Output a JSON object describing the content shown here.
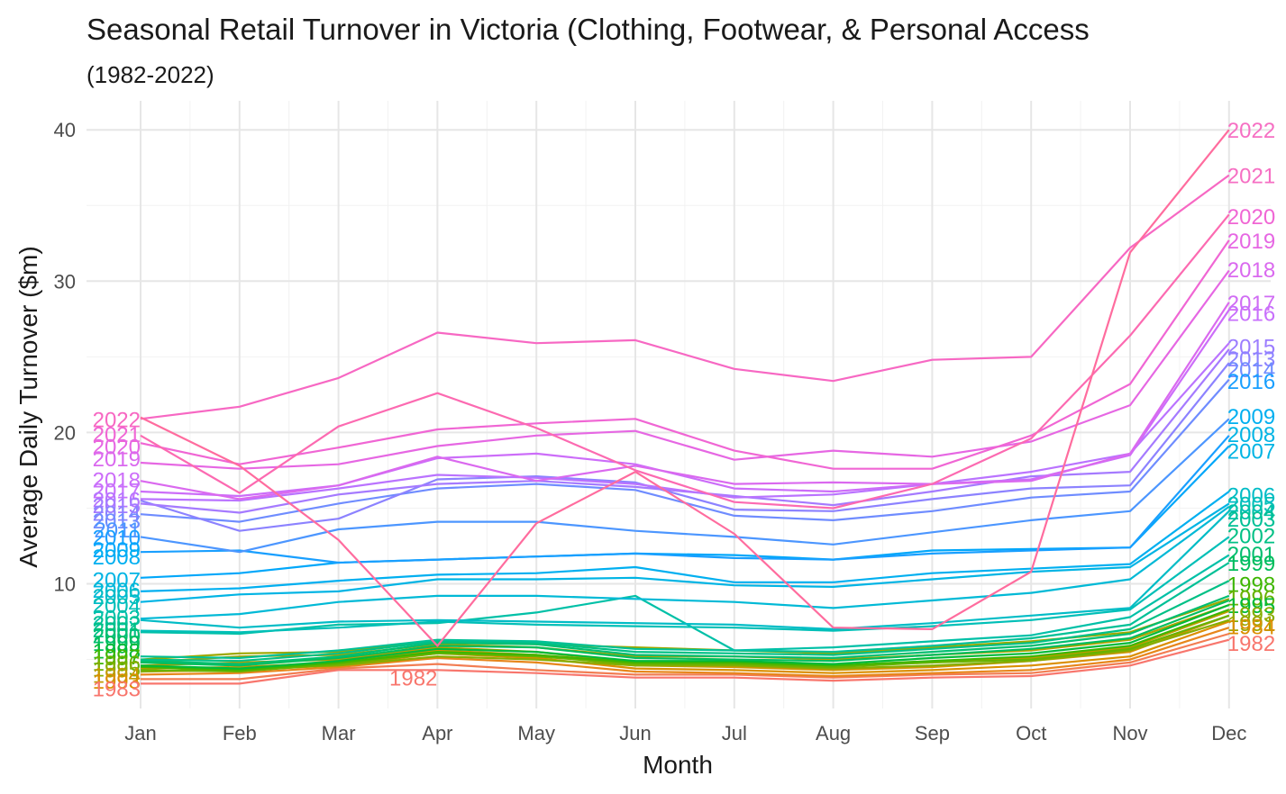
{
  "chart_data": {
    "type": "line",
    "title": "Seasonal Retail Turnover in Victoria (Clothing, Footwear, & Personal Access",
    "subtitle": "(1982-2022)",
    "xlabel": "Month",
    "ylabel": "Average Daily Turnover ($m)",
    "categories": [
      "Jan",
      "Feb",
      "Mar",
      "Apr",
      "May",
      "Jun",
      "Jul",
      "Aug",
      "Sep",
      "Oct",
      "Nov",
      "Dec"
    ],
    "ylim": [
      1.5,
      42
    ],
    "yticks": [
      10,
      20,
      30,
      40
    ],
    "grid": true,
    "legend": "none (year labels at line ends)",
    "series": [
      {
        "name": "1982",
        "color": "#F8766D",
        "values": [
          3.4,
          3.4,
          4.3,
          4.3,
          4.1,
          3.8,
          3.8,
          3.6,
          3.8,
          3.9,
          4.6,
          6.3
        ]
      },
      {
        "name": "1983",
        "color": "#F27D52",
        "values": [
          3.7,
          3.7,
          4.4,
          4.7,
          4.3,
          4.0,
          4.0,
          3.8,
          4.0,
          4.1,
          4.8,
          6.7
        ]
      },
      {
        "name": "1984",
        "color": "#E7861B",
        "values": [
          4.0,
          4.1,
          4.5,
          5.1,
          4.8,
          4.2,
          4.1,
          3.9,
          4.1,
          4.3,
          5.0,
          7.1
        ]
      },
      {
        "name": "1985",
        "color": "#DB8E00",
        "values": [
          4.2,
          4.3,
          4.6,
          5.4,
          5.1,
          4.4,
          4.3,
          4.1,
          4.3,
          4.6,
          5.2,
          7.5
        ]
      },
      {
        "name": "1986",
        "color": "#CF9400",
        "values": [
          4.4,
          4.5,
          4.8,
          5.6,
          5.3,
          4.6,
          4.5,
          4.3,
          4.5,
          4.9,
          5.5,
          7.9
        ]
      },
      {
        "name": "1987",
        "color": "#C09B00",
        "values": [
          4.6,
          4.8,
          5.0,
          5.8,
          5.5,
          4.8,
          4.8,
          4.6,
          4.8,
          5.1,
          5.8,
          8.2
        ]
      },
      {
        "name": "1988",
        "color": "#AFA100",
        "values": [
          4.8,
          5.2,
          5.3,
          6.0,
          5.8,
          5.2,
          5.2,
          5.0,
          5.3,
          5.6,
          6.3,
          8.6
        ]
      },
      {
        "name": "1989",
        "color": "#9DA700",
        "values": [
          5.0,
          5.4,
          5.5,
          6.2,
          6.0,
          5.8,
          5.6,
          5.4,
          5.8,
          6.2,
          6.8,
          9.0
        ]
      },
      {
        "name": "1990",
        "color": "#85AD00",
        "values": [
          4.2,
          4.4,
          4.6,
          5.2,
          5.0,
          4.6,
          4.6,
          4.4,
          4.6,
          4.9,
          5.6,
          7.6
        ]
      },
      {
        "name": "1991",
        "color": "#68B200",
        "values": [
          4.3,
          4.2,
          4.7,
          5.4,
          5.2,
          4.7,
          4.7,
          4.5,
          4.8,
          5.0,
          5.7,
          7.9
        ]
      },
      {
        "name": "1992",
        "color": "#3DB600",
        "values": [
          4.5,
          4.3,
          4.8,
          5.5,
          5.3,
          4.8,
          4.8,
          4.6,
          4.9,
          5.2,
          5.9,
          8.3
        ]
      },
      {
        "name": "1993",
        "color": "#00BA38",
        "values": [
          4.6,
          4.4,
          4.9,
          5.7,
          5.5,
          4.9,
          4.9,
          4.7,
          5.1,
          5.4,
          6.1,
          8.6
        ]
      },
      {
        "name": "1994",
        "color": "#00BD5C",
        "values": [
          4.8,
          4.6,
          5.1,
          5.9,
          5.8,
          5.1,
          5.0,
          4.9,
          5.3,
          5.7,
          6.4,
          8.9
        ]
      },
      {
        "name": "1995",
        "color": "#00BE70",
        "values": [
          4.9,
          4.7,
          5.2,
          6.1,
          6.0,
          5.3,
          5.2,
          5.1,
          5.5,
          5.9,
          6.7,
          9.2
        ]
      },
      {
        "name": "1996",
        "color": "#00C085",
        "values": [
          5.0,
          4.9,
          5.4,
          6.2,
          6.1,
          5.5,
          5.4,
          5.3,
          5.7,
          6.1,
          7.0,
          10.2
        ]
      },
      {
        "name": "1997",
        "color": "#00C096",
        "values": [
          5.2,
          5.1,
          5.6,
          6.3,
          6.2,
          5.7,
          5.6,
          5.5,
          5.9,
          6.4,
          7.3,
          11.4
        ]
      },
      {
        "name": "1998",
        "color": "#00C0A7",
        "values": [
          6.8,
          6.7,
          7.3,
          7.4,
          8.1,
          9.2,
          5.6,
          5.8,
          6.2,
          6.6,
          7.8,
          11.9
        ]
      },
      {
        "name": "1999",
        "color": "#00BFB7",
        "values": [
          6.9,
          6.8,
          7.1,
          7.5,
          7.3,
          7.2,
          7.1,
          6.9,
          7.2,
          7.6,
          8.3,
          13.1
        ]
      },
      {
        "name": "2000",
        "color": "#00BCC6",
        "values": [
          7.6,
          7.1,
          7.5,
          7.6,
          7.5,
          7.4,
          7.3,
          7.0,
          7.4,
          7.9,
          8.4,
          14.8
        ]
      },
      {
        "name": "2001",
        "color": "#00B9D6",
        "values": [
          7.7,
          8.0,
          8.8,
          9.2,
          9.2,
          9.0,
          8.8,
          8.4,
          8.9,
          9.4,
          10.3,
          15.1
        ]
      },
      {
        "name": "2002",
        "color": "#00B4E4",
        "values": [
          8.8,
          9.3,
          9.5,
          10.3,
          10.3,
          10.4,
          9.9,
          9.8,
          10.3,
          10.8,
          11.1,
          15.3
        ]
      },
      {
        "name": "2003",
        "color": "#00AFF0",
        "values": [
          9.5,
          9.7,
          10.2,
          10.6,
          10.7,
          11.1,
          10.1,
          10.1,
          10.7,
          11.0,
          11.3,
          16.1
        ]
      },
      {
        "name": "2004",
        "color": "#00A7FA",
        "values": [
          10.4,
          10.7,
          11.4,
          11.6,
          11.8,
          12.0,
          11.9,
          11.6,
          12.2,
          12.3,
          12.4,
          19.1
        ]
      },
      {
        "name": "2005",
        "color": "#199FFF",
        "values": [
          12.1,
          12.2,
          11.4,
          11.6,
          11.8,
          12.0,
          11.7,
          11.6,
          12.0,
          12.2,
          12.4,
          19.8
        ]
      },
      {
        "name": "2006",
        "color": "#4C96FF",
        "values": [
          13.1,
          12.1,
          13.6,
          14.1,
          14.1,
          13.5,
          13.1,
          12.6,
          13.4,
          14.2,
          14.8,
          20.9
        ]
      },
      {
        "name": "2007",
        "color": "#6F8CFF",
        "values": [
          14.6,
          14.1,
          15.3,
          16.3,
          16.6,
          16.2,
          14.5,
          14.2,
          14.8,
          15.7,
          16.1,
          23.5
        ]
      },
      {
        "name": "2008",
        "color": "#8C82FF",
        "values": [
          15.5,
          13.5,
          14.3,
          16.9,
          17.1,
          16.7,
          14.9,
          14.8,
          15.6,
          16.3,
          16.5,
          24.6
        ]
      },
      {
        "name": "2009",
        "color": "#A57AFF",
        "values": [
          15.3,
          14.7,
          15.9,
          16.6,
          16.8,
          16.4,
          15.8,
          15.2,
          16.1,
          17.1,
          17.4,
          25.5
        ]
      },
      {
        "name": "2010",
        "color": "#BA73FF",
        "values": [
          15.6,
          15.5,
          16.3,
          17.2,
          17.0,
          16.6,
          15.7,
          15.9,
          16.6,
          17.4,
          18.6,
          25.9
        ]
      },
      {
        "name": "2011",
        "color": "#CC6DF9",
        "values": [
          16.1,
          15.8,
          16.5,
          18.3,
          18.6,
          17.9,
          16.3,
          16.1,
          16.6,
          16.9,
          18.5,
          28.1
        ]
      },
      {
        "name": "2012",
        "color": "#DA69EF",
        "values": [
          16.8,
          15.6,
          16.5,
          18.4,
          16.8,
          17.8,
          16.6,
          16.7,
          16.6,
          16.8,
          18.6,
          28.6
        ]
      },
      {
        "name": "2013",
        "color": "#E667E3",
        "values": [
          18.0,
          17.6,
          17.9,
          19.1,
          19.8,
          20.1,
          18.2,
          18.8,
          18.4,
          19.4,
          21.8,
          30.7
        ]
      },
      {
        "name": "2014",
        "color": "#F066D4",
        "values": [
          19.3,
          17.9,
          19.0,
          20.2,
          20.6,
          20.9,
          18.8,
          17.6,
          17.6,
          19.8,
          23.2,
          32.7
        ]
      },
      {
        "name": "2015",
        "color": "#F768C3",
        "values": [
          20.9,
          21.7,
          23.6,
          26.6,
          25.9,
          26.1,
          24.2,
          23.4,
          24.8,
          25.0,
          32.2,
          37.0
        ]
      },
      {
        "name": "2016",
        "color": "#FC6AB1",
        "values": [
          19.8,
          16.0,
          20.4,
          22.6,
          20.3,
          17.5,
          15.4,
          15.0,
          16.6,
          19.6,
          26.4,
          34.4
        ]
      },
      {
        "name": "2017",
        "color": "#FF6C9E",
        "values": [
          21.0,
          17.8,
          12.9,
          5.9,
          14.0,
          17.4,
          13.3,
          7.1,
          7.0,
          10.8,
          31.9,
          40.0
        ]
      }
    ],
    "end_labels": [
      {
        "text": "2022",
        "color": "#F66FC3",
        "y": 40.0
      },
      {
        "text": "2021",
        "color": "#F66FC3",
        "y": 37.0
      },
      {
        "text": "2020",
        "color": "#F066D4",
        "y": 34.3
      },
      {
        "text": "2019",
        "color": "#E667E3",
        "y": 32.7
      },
      {
        "text": "2018",
        "color": "#DA69EF",
        "y": 30.8
      },
      {
        "text": "2017",
        "color": "#D06CF4",
        "y": 28.6
      },
      {
        "text": "2016",
        "color": "#C870FC",
        "y": 27.9
      },
      {
        "text": "2015",
        "color": "#9C7DFF",
        "y": 25.7
      },
      {
        "text": "2013",
        "color": "#8C82FF",
        "y": 24.9
      },
      {
        "text": "2014",
        "color": "#6F8CFF",
        "y": 24.2
      },
      {
        "text": "2016",
        "color": "#199FFF",
        "y": 23.4
      },
      {
        "text": "2009",
        "color": "#00AFF0",
        "y": 21.1
      },
      {
        "text": "2008",
        "color": "#00B4E4",
        "y": 19.9
      },
      {
        "text": "2007",
        "color": "#00B4E4",
        "y": 18.8
      },
      {
        "text": "2006",
        "color": "#00BCC6",
        "y": 15.9
      },
      {
        "text": "2005",
        "color": "#00BFB7",
        "y": 15.3
      },
      {
        "text": "2004",
        "color": "#00C0A7",
        "y": 14.8
      },
      {
        "text": "2003",
        "color": "#00C096",
        "y": 14.3
      },
      {
        "text": "2002",
        "color": "#00C085",
        "y": 13.2
      },
      {
        "text": "2001",
        "color": "#00BE70",
        "y": 12.0
      },
      {
        "text": "1999",
        "color": "#00BD5C",
        "y": 11.4
      },
      {
        "text": "1998",
        "color": "#3DB600",
        "y": 10.0
      },
      {
        "text": "1996",
        "color": "#68B200",
        "y": 9.1
      },
      {
        "text": "1995",
        "color": "#00BA38",
        "y": 8.6
      },
      {
        "text": "1993",
        "color": "#85AD00",
        "y": 8.0
      },
      {
        "text": "1991",
        "color": "#9DA700",
        "y": 7.4
      },
      {
        "text": "1984",
        "color": "#DB8E00",
        "y": 7.2
      },
      {
        "text": "1982",
        "color": "#F8766D",
        "y": 6.1
      }
    ],
    "start_labels": [
      {
        "text": "2022",
        "color": "#F768C3",
        "y": 20.9
      },
      {
        "text": "2021",
        "color": "#F066D4",
        "y": 19.9
      },
      {
        "text": "2020",
        "color": "#E667E3",
        "y": 19.1
      },
      {
        "text": "2019",
        "color": "#DA69EF",
        "y": 18.3
      },
      {
        "text": "2018",
        "color": "#CC6DF9",
        "y": 16.9
      },
      {
        "text": "2017",
        "color": "#C870FC",
        "y": 16.2
      },
      {
        "text": "2016",
        "color": "#B674FF",
        "y": 15.6
      },
      {
        "text": "2015",
        "color": "#A57AFF",
        "y": 15.2
      },
      {
        "text": "2014",
        "color": "#8C82FF",
        "y": 14.7
      },
      {
        "text": "2013",
        "color": "#6F8CFF",
        "y": 14.2
      },
      {
        "text": "2011",
        "color": "#4C96FF",
        "y": 13.6
      },
      {
        "text": "2010",
        "color": "#199FFF",
        "y": 13.1
      },
      {
        "text": "2009",
        "color": "#00A7FA",
        "y": 12.3
      },
      {
        "text": "2008",
        "color": "#00AFF0",
        "y": 11.8
      },
      {
        "text": "2007",
        "color": "#00B4E4",
        "y": 10.3
      },
      {
        "text": "2006",
        "color": "#00B9D6",
        "y": 9.6
      },
      {
        "text": "2005",
        "color": "#00BCC6",
        "y": 9.2
      },
      {
        "text": "2004",
        "color": "#00BFB7",
        "y": 8.6
      },
      {
        "text": "2003",
        "color": "#00C0A7",
        "y": 7.8
      },
      {
        "text": "2002",
        "color": "#00C096",
        "y": 7.4
      },
      {
        "text": "2001",
        "color": "#00C085",
        "y": 7.0
      },
      {
        "text": "2000",
        "color": "#00BE70",
        "y": 6.6
      },
      {
        "text": "1999",
        "color": "#00BD5C",
        "y": 6.1
      },
      {
        "text": "1998",
        "color": "#00BA38",
        "y": 5.6
      },
      {
        "text": "1997",
        "color": "#3DB600",
        "y": 5.2
      },
      {
        "text": "1996",
        "color": "#68B200",
        "y": 4.8
      },
      {
        "text": "1995",
        "color": "#85AD00",
        "y": 4.4
      },
      {
        "text": "1994",
        "color": "#C09B00",
        "y": 4.0
      },
      {
        "text": "1993",
        "color": "#DB8E00",
        "y": 3.6
      },
      {
        "text": "1983",
        "color": "#F8766D",
        "y": 3.1
      }
    ],
    "annotations": [
      {
        "text": "1982",
        "color": "#F8766D",
        "x": "Apr",
        "y": 3.8
      }
    ]
  }
}
